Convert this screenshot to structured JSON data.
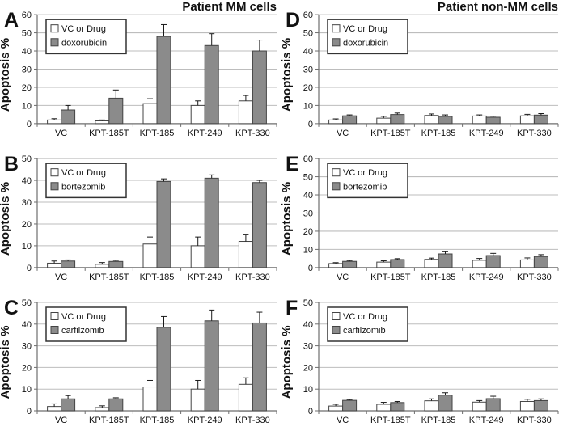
{
  "figure": {
    "column_titles": {
      "left": "Patient MM cells",
      "right": "Patient non-MM cells"
    },
    "ylabel": "Apoptosis %",
    "colors": {
      "background": "#ffffff",
      "vc_bar_fill": "#ffffff",
      "drug_bar_fill": "#8b8b8b",
      "bar_border": "#444444",
      "gridline": "#bdbdbd",
      "axis": "#6e6e6e",
      "error_bar": "#1a1a1a",
      "text": "#111111",
      "legend_border": "#333333"
    }
  },
  "chart_data": [
    {
      "panel": "A",
      "type": "bar",
      "title": "Patient MM cells",
      "ylabel": "Apoptosis %",
      "ylim": [
        0,
        60
      ],
      "ytick_step": 10,
      "grid": true,
      "legend_position": "top-left",
      "categories": [
        "VC",
        "KPT-185T",
        "KPT-185",
        "KPT-249",
        "KPT-330"
      ],
      "legend": [
        "VC or Drug",
        "doxorubicin"
      ],
      "series": [
        {
          "name": "VC or Drug",
          "role": "vc",
          "values": [
            2,
            1.5,
            11,
            10,
            12.5
          ],
          "errors": [
            0.7,
            0.5,
            2.7,
            2.5,
            3
          ]
        },
        {
          "name": "doxorubicin",
          "role": "drug",
          "values": [
            7.5,
            14,
            48,
            43,
            40
          ],
          "errors": [
            2.5,
            4.5,
            6.5,
            6.5,
            6
          ]
        }
      ]
    },
    {
      "panel": "D",
      "type": "bar",
      "title": "Patient non-MM cells",
      "ylabel": "Apoptosis %",
      "ylim": [
        0,
        60
      ],
      "ytick_step": 10,
      "grid": true,
      "legend_position": "top-left",
      "categories": [
        "VC",
        "KPT-185T",
        "KPT-185",
        "KPT-249",
        "KPT-330"
      ],
      "legend": [
        "VC or Drug",
        "doxorubicin"
      ],
      "series": [
        {
          "name": "VC or Drug",
          "role": "vc",
          "values": [
            2,
            3,
            4.5,
            4.2,
            4.3
          ],
          "errors": [
            0.6,
            1,
            0.8,
            0.6,
            0.8
          ]
        },
        {
          "name": "doxorubicin",
          "role": "drug",
          "values": [
            4.3,
            5,
            4,
            3.5,
            4.7
          ],
          "errors": [
            0.5,
            0.8,
            0.8,
            0.6,
            0.8
          ]
        }
      ]
    },
    {
      "panel": "B",
      "type": "bar",
      "title": "",
      "ylabel": "Apoptosis %",
      "ylim": [
        0,
        50
      ],
      "ytick_step": 10,
      "grid": true,
      "legend_position": "top-left",
      "categories": [
        "VC",
        "KPT-185T",
        "KPT-185",
        "KPT-249",
        "KPT-330"
      ],
      "legend": [
        "VC or Drug",
        "bortezomib"
      ],
      "series": [
        {
          "name": "VC or Drug",
          "role": "vc",
          "values": [
            2,
            1.5,
            10.8,
            10,
            12
          ],
          "errors": [
            1,
            0.8,
            3.2,
            4,
            3.3
          ]
        },
        {
          "name": "bortezomib",
          "role": "drug",
          "values": [
            3,
            2.8,
            39.5,
            41,
            39
          ],
          "errors": [
            0.5,
            0.5,
            1.2,
            1.5,
            1
          ]
        }
      ]
    },
    {
      "panel": "E",
      "type": "bar",
      "title": "",
      "ylabel": "Apoptosis %",
      "ylim": [
        0,
        60
      ],
      "ytick_step": 10,
      "grid": true,
      "legend_position": "top-left",
      "categories": [
        "VC",
        "KPT-185T",
        "KPT-185",
        "KPT-249",
        "KPT-330"
      ],
      "legend": [
        "VC or Drug",
        "bortezomib"
      ],
      "series": [
        {
          "name": "VC or Drug",
          "role": "vc",
          "values": [
            2.2,
            3,
            4.5,
            4,
            4.2
          ],
          "errors": [
            0.5,
            0.7,
            0.7,
            1,
            1.1
          ]
        },
        {
          "name": "bortezomib",
          "role": "drug",
          "values": [
            3.4,
            4.4,
            7.5,
            6.6,
            6.1
          ],
          "errors": [
            0.5,
            0.5,
            1.2,
            1.2,
            1
          ]
        }
      ]
    },
    {
      "panel": "C",
      "type": "bar",
      "title": "",
      "ylabel": "Apoptosis %",
      "ylim": [
        0,
        50
      ],
      "ytick_step": 10,
      "grid": true,
      "legend_position": "top-left",
      "categories": [
        "VC",
        "KPT-185T",
        "KPT-185",
        "KPT-249",
        "KPT-330"
      ],
      "legend": [
        "VC or Drug",
        "carfilzomib"
      ],
      "series": [
        {
          "name": "VC or Drug",
          "role": "vc",
          "values": [
            2,
            1.5,
            11,
            10,
            12.2
          ],
          "errors": [
            1.2,
            0.8,
            3,
            4,
            3
          ]
        },
        {
          "name": "carfilzomib",
          "role": "drug",
          "values": [
            5.5,
            5.5,
            38.5,
            41.5,
            40.5
          ],
          "errors": [
            1.5,
            0.5,
            5,
            5,
            5
          ]
        }
      ]
    },
    {
      "panel": "F",
      "type": "bar",
      "title": "",
      "ylabel": "Apoptosis %",
      "ylim": [
        0,
        50
      ],
      "ytick_step": 10,
      "grid": true,
      "legend_position": "top-left",
      "categories": [
        "VC",
        "KPT-185T",
        "KPT-185",
        "KPT-249",
        "KPT-330"
      ],
      "legend": [
        "VC or Drug",
        "carfilzomib"
      ],
      "series": [
        {
          "name": "VC or Drug",
          "role": "vc",
          "values": [
            2.2,
            3,
            4.6,
            4,
            4.3
          ],
          "errors": [
            0.8,
            0.9,
            0.9,
            0.7,
            1
          ]
        },
        {
          "name": "carfilzomib",
          "role": "drug",
          "values": [
            4.8,
            3.8,
            7.2,
            5.6,
            4.7
          ],
          "errors": [
            0.4,
            0.5,
            1.1,
            1.1,
            0.8
          ]
        }
      ]
    }
  ]
}
